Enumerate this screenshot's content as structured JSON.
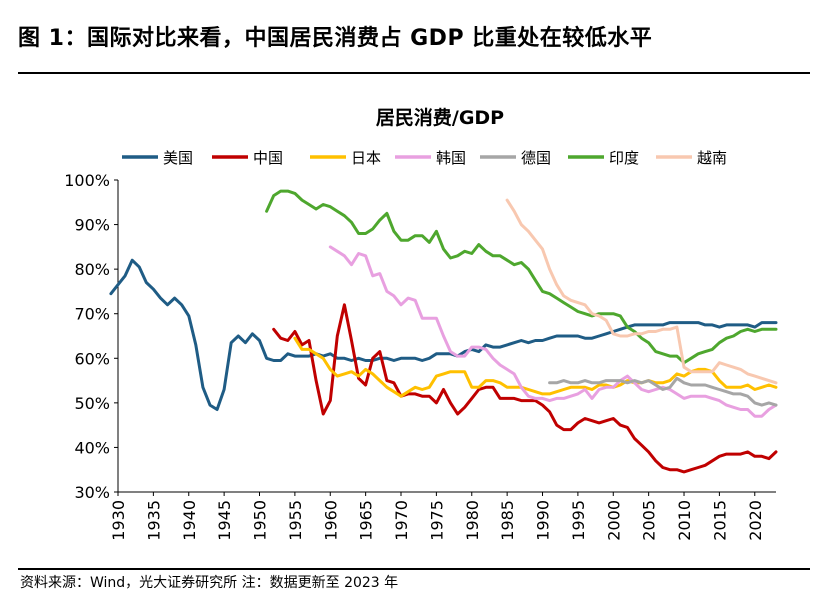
{
  "header": {
    "title": "图 1：国际对比来看，中国居民消费占 GDP 比重处在较低水平"
  },
  "footer": {
    "text": "资料来源：Wind，光大证券研究所 注：数据更新至 2023 年"
  },
  "chart_data": {
    "type": "line",
    "title": "居民消费/GDP",
    "xlabel": "",
    "ylabel": "",
    "xlim": [
      1930,
      2023
    ],
    "ylim": [
      30,
      100
    ],
    "y_ticks": [
      "30%",
      "40%",
      "50%",
      "60%",
      "70%",
      "80%",
      "90%",
      "100%"
    ],
    "x_ticks": [
      "1930",
      "1935",
      "1940",
      "1945",
      "1950",
      "1955",
      "1960",
      "1965",
      "1970",
      "1975",
      "1980",
      "1985",
      "1990",
      "1995",
      "2000",
      "2005",
      "2010",
      "2015",
      "2020"
    ],
    "legend_position": "top",
    "grid": false,
    "series": [
      {
        "name": "美国",
        "color": "#1f5c85",
        "x": [
          1929,
          1930,
          1931,
          1932,
          1933,
          1934,
          1935,
          1936,
          1937,
          1938,
          1939,
          1940,
          1941,
          1942,
          1943,
          1944,
          1945,
          1946,
          1947,
          1948,
          1949,
          1950,
          1951,
          1952,
          1953,
          1954,
          1955,
          1956,
          1957,
          1958,
          1959,
          1960,
          1961,
          1962,
          1963,
          1964,
          1965,
          1966,
          1967,
          1968,
          1969,
          1970,
          1971,
          1972,
          1973,
          1974,
          1975,
          1976,
          1977,
          1978,
          1979,
          1980,
          1981,
          1982,
          1983,
          1984,
          1985,
          1986,
          1987,
          1988,
          1989,
          1990,
          1991,
          1992,
          1993,
          1994,
          1995,
          1996,
          1997,
          1998,
          1999,
          2000,
          2001,
          2002,
          2003,
          2004,
          2005,
          2006,
          2007,
          2008,
          2009,
          2010,
          2011,
          2012,
          2013,
          2014,
          2015,
          2016,
          2017,
          2018,
          2019,
          2020,
          2021,
          2022,
          2023
        ],
        "y": [
          74.5,
          76.5,
          78.5,
          82,
          80.5,
          77,
          75.5,
          73.5,
          72,
          73.5,
          72,
          69.5,
          63,
          53.5,
          49.5,
          48.5,
          53,
          63.5,
          65,
          63.5,
          65.5,
          64,
          60,
          59.5,
          59.5,
          61,
          60.5,
          60.5,
          60.5,
          61,
          60.5,
          61,
          60,
          60,
          59.5,
          60,
          59.5,
          59.5,
          60,
          60,
          59.5,
          60,
          60,
          60,
          59.5,
          60,
          61,
          61,
          61,
          60.5,
          61.5,
          62,
          61.5,
          63,
          62.5,
          62.5,
          63,
          63.5,
          64,
          63.5,
          64,
          64,
          64.5,
          65,
          65,
          65,
          65,
          64.5,
          64.5,
          65,
          65.5,
          66,
          66.5,
          67,
          67.5,
          67.5,
          67.5,
          67.5,
          67.5,
          68,
          68,
          68,
          68,
          68,
          67.5,
          67.5,
          67,
          67.5,
          67.5,
          67.5,
          67.5,
          67,
          68,
          68,
          68
        ]
      },
      {
        "name": "中国",
        "color": "#c00000",
        "x": [
          1952,
          1953,
          1954,
          1955,
          1956,
          1957,
          1958,
          1959,
          1960,
          1961,
          1962,
          1963,
          1964,
          1965,
          1966,
          1967,
          1968,
          1969,
          1970,
          1971,
          1972,
          1973,
          1974,
          1975,
          1976,
          1977,
          1978,
          1979,
          1980,
          1981,
          1982,
          1983,
          1984,
          1985,
          1986,
          1987,
          1988,
          1989,
          1990,
          1991,
          1992,
          1993,
          1994,
          1995,
          1996,
          1997,
          1998,
          1999,
          2000,
          2001,
          2002,
          2003,
          2004,
          2005,
          2006,
          2007,
          2008,
          2009,
          2010,
          2011,
          2012,
          2013,
          2014,
          2015,
          2016,
          2017,
          2018,
          2019,
          2020,
          2021,
          2022,
          2023
        ],
        "y": [
          66.5,
          64.5,
          64,
          66,
          63,
          64,
          55,
          47.5,
          50.5,
          65,
          72,
          64,
          55.5,
          54,
          60,
          61.5,
          55,
          54.5,
          51.5,
          52,
          52,
          51.5,
          51.5,
          50,
          53,
          50,
          47.5,
          49,
          51,
          53,
          53.5,
          53.5,
          51,
          51,
          51,
          50.5,
          50.5,
          50.5,
          49.5,
          48,
          45,
          44,
          44,
          45.5,
          46.5,
          46,
          45.5,
          46,
          46.5,
          45,
          44.5,
          42,
          40.5,
          39,
          37,
          35.5,
          35,
          35,
          34.5,
          35,
          35.5,
          36,
          37,
          38,
          38.5,
          38.5,
          38.5,
          39,
          38,
          38,
          37.5,
          39
        ]
      },
      {
        "name": "日本",
        "color": "#ffc000",
        "x": [
          1955,
          1956,
          1957,
          1958,
          1959,
          1960,
          1961,
          1962,
          1963,
          1964,
          1965,
          1966,
          1967,
          1968,
          1969,
          1970,
          1971,
          1972,
          1973,
          1974,
          1975,
          1976,
          1977,
          1978,
          1979,
          1980,
          1981,
          1982,
          1983,
          1984,
          1985,
          1986,
          1987,
          1988,
          1989,
          1990,
          1991,
          1992,
          1993,
          1994,
          1995,
          1996,
          1997,
          1998,
          1999,
          2000,
          2001,
          2002,
          2003,
          2004,
          2005,
          2006,
          2007,
          2008,
          2009,
          2010,
          2011,
          2012,
          2013,
          2014,
          2015,
          2016,
          2017,
          2018,
          2019,
          2020,
          2021,
          2022,
          2023
        ],
        "y": [
          64.5,
          62,
          62,
          61,
          60,
          57.5,
          56,
          56.5,
          57,
          56,
          57.5,
          56.5,
          55,
          53.5,
          52.5,
          51.5,
          52.5,
          53.5,
          53,
          53.5,
          56,
          56.5,
          57,
          57,
          57,
          53.5,
          53.5,
          55,
          55,
          54.5,
          53.5,
          53.5,
          53.5,
          53,
          52.5,
          52,
          52,
          52.5,
          53,
          53.5,
          53.5,
          53.5,
          53,
          54,
          54,
          53.5,
          54,
          55,
          54.5,
          54.5,
          55,
          54.5,
          54.5,
          55,
          56.5,
          56,
          57,
          57.5,
          57.5,
          57,
          55,
          53.5,
          53.5,
          53.5,
          54,
          53,
          53.5,
          54,
          53.5
        ]
      },
      {
        "name": "韩国",
        "color": "#e8a0e0",
        "x": [
          1960,
          1961,
          1962,
          1963,
          1964,
          1965,
          1966,
          1967,
          1968,
          1969,
          1970,
          1971,
          1972,
          1973,
          1974,
          1975,
          1976,
          1977,
          1978,
          1979,
          1980,
          1981,
          1982,
          1983,
          1984,
          1985,
          1986,
          1987,
          1988,
          1989,
          1990,
          1991,
          1992,
          1993,
          1994,
          1995,
          1996,
          1997,
          1998,
          1999,
          2000,
          2001,
          2002,
          2003,
          2004,
          2005,
          2006,
          2007,
          2008,
          2009,
          2010,
          2011,
          2012,
          2013,
          2014,
          2015,
          2016,
          2017,
          2018,
          2019,
          2020,
          2021,
          2022,
          2023
        ],
        "y": [
          85,
          84,
          83,
          81,
          83.5,
          83,
          78.5,
          79,
          75,
          74,
          72,
          73.5,
          73,
          69,
          69,
          69,
          65,
          61.5,
          60.5,
          60.5,
          62.5,
          62.5,
          62,
          60,
          58.5,
          57.5,
          56.5,
          53.5,
          51.5,
          51,
          51,
          50.5,
          51,
          51,
          51.5,
          52,
          53,
          51,
          53,
          53.5,
          53.5,
          55,
          56,
          54.5,
          53,
          52.5,
          53,
          53.5,
          53,
          52,
          51,
          51.5,
          51.5,
          51.5,
          51,
          50.5,
          49.5,
          49,
          48.5,
          48.5,
          47,
          47,
          48.5,
          49.5
        ]
      },
      {
        "name": "德国",
        "color": "#a6a6a6",
        "x": [
          1991,
          1992,
          1993,
          1994,
          1995,
          1996,
          1997,
          1998,
          1999,
          2000,
          2001,
          2002,
          2003,
          2004,
          2005,
          2006,
          2007,
          2008,
          2009,
          2010,
          2011,
          2012,
          2013,
          2014,
          2015,
          2016,
          2017,
          2018,
          2019,
          2020,
          2021,
          2022,
          2023
        ],
        "y": [
          54.5,
          54.5,
          55,
          54.5,
          54.5,
          55,
          54.5,
          54.5,
          55,
          55,
          55,
          54.5,
          55,
          54.5,
          55,
          54,
          53,
          53.5,
          55.5,
          54.5,
          54,
          54,
          54,
          53.5,
          53,
          52.5,
          52,
          52,
          51.5,
          50,
          49.5,
          50,
          49.5
        ]
      },
      {
        "name": "印度",
        "color": "#4ea72e",
        "x": [
          1951,
          1952,
          1953,
          1954,
          1955,
          1956,
          1957,
          1958,
          1959,
          1960,
          1961,
          1962,
          1963,
          1964,
          1965,
          1966,
          1967,
          1968,
          1969,
          1970,
          1971,
          1972,
          1973,
          1974,
          1975,
          1976,
          1977,
          1978,
          1979,
          1980,
          1981,
          1982,
          1983,
          1984,
          1985,
          1986,
          1987,
          1988,
          1989,
          1990,
          1991,
          1992,
          1993,
          1994,
          1995,
          1996,
          1997,
          1998,
          1999,
          2000,
          2001,
          2002,
          2003,
          2004,
          2005,
          2006,
          2007,
          2008,
          2009,
          2010,
          2011,
          2012,
          2013,
          2014,
          2015,
          2016,
          2017,
          2018,
          2019,
          2020,
          2021,
          2022,
          2023
        ],
        "y": [
          93,
          96.5,
          97.5,
          97.5,
          97,
          95.5,
          94.5,
          93.5,
          94.5,
          94,
          93,
          92,
          90.5,
          88,
          88,
          89,
          91,
          92.5,
          88.5,
          86.5,
          86.5,
          87.5,
          87.5,
          86,
          88.5,
          84.5,
          82.5,
          83,
          84,
          83.5,
          85.5,
          84,
          83,
          83,
          82,
          81,
          81.5,
          80,
          77.5,
          75,
          74.5,
          73.5,
          72.5,
          71.5,
          70.5,
          70,
          69.5,
          70,
          70,
          70,
          69.5,
          67,
          66,
          64.5,
          63.5,
          61.5,
          61,
          60.5,
          60.5,
          59,
          60,
          61,
          61.5,
          62,
          63.5,
          64.5,
          65,
          66,
          66.5,
          66,
          66.5,
          66.5,
          66.5
        ]
      },
      {
        "name": "越南",
        "color": "#f8c8b0",
        "x": [
          1985,
          1986,
          1987,
          1988,
          1989,
          1990,
          1991,
          1992,
          1993,
          1994,
          1995,
          1996,
          1997,
          1998,
          1999,
          2000,
          2001,
          2002,
          2003,
          2004,
          2005,
          2006,
          2007,
          2008,
          2009,
          2010,
          2011,
          2012,
          2013,
          2014,
          2015,
          2016,
          2017,
          2018,
          2019,
          2020,
          2021,
          2022,
          2023
        ],
        "y": [
          95.5,
          93,
          90,
          88.5,
          86.5,
          84.5,
          80,
          76.5,
          74,
          73,
          72.5,
          72,
          70,
          69.5,
          68.5,
          65.5,
          65,
          65,
          65.5,
          65.5,
          66,
          66,
          66.5,
          66.5,
          67,
          58,
          57,
          57,
          57,
          57,
          59,
          58.5,
          58,
          57.5,
          56.5,
          56,
          55.5,
          55,
          54.5
        ]
      }
    ]
  }
}
